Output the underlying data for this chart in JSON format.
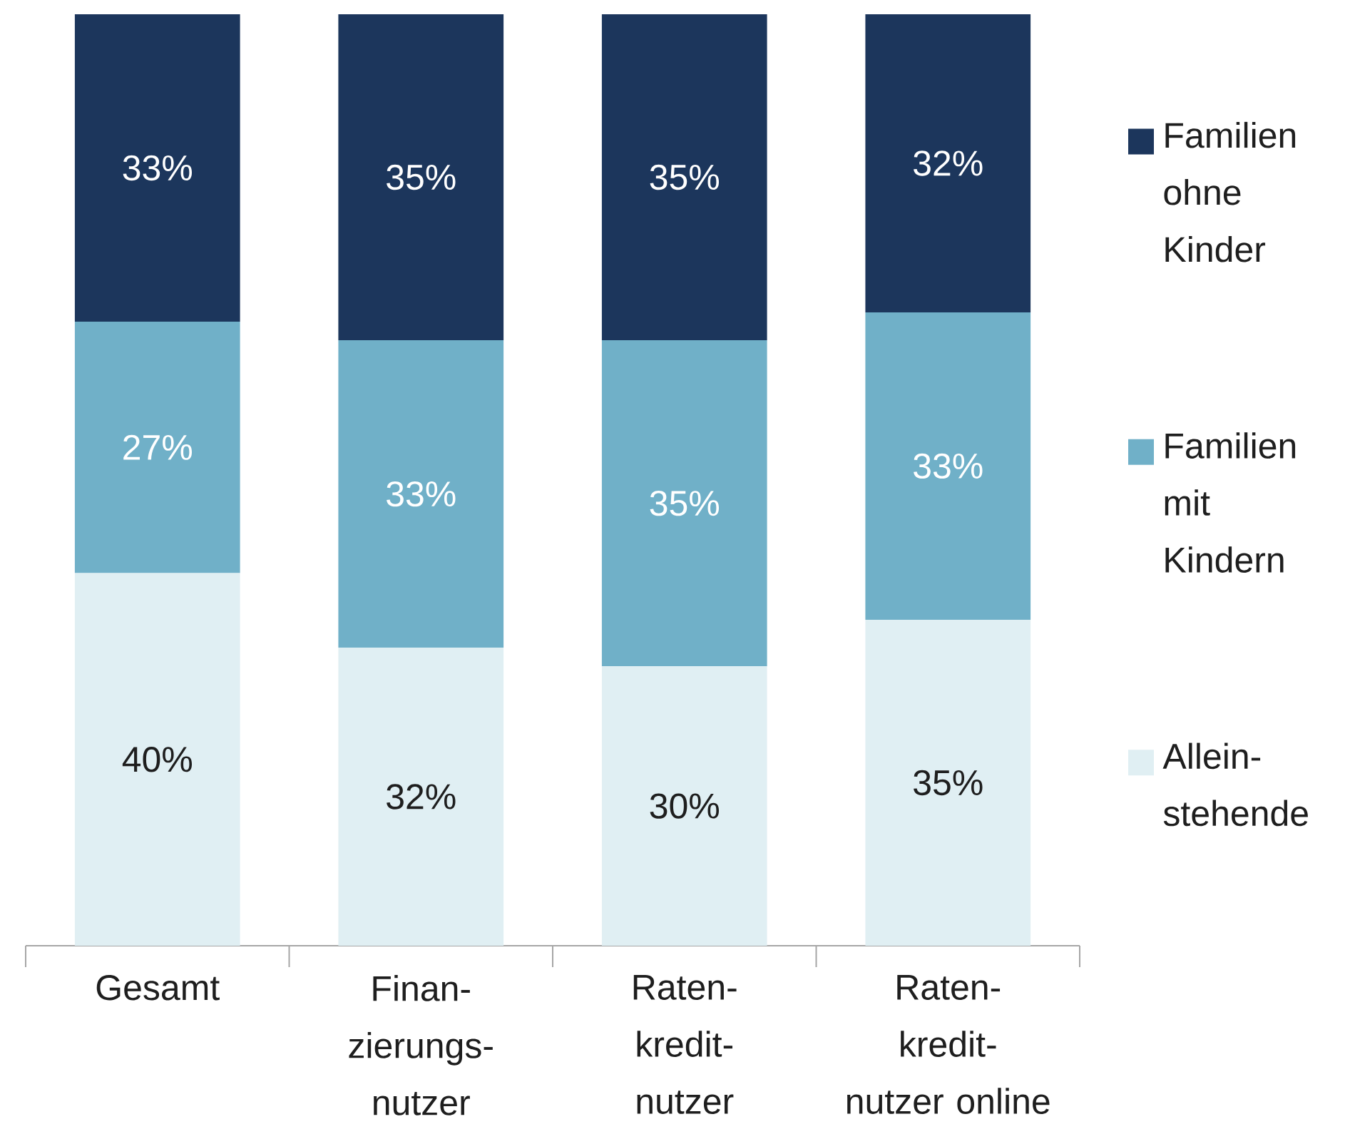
{
  "chart_data": {
    "type": "bar",
    "stacked": true,
    "legend": "right",
    "categories": [
      "Gesamt",
      "Finan-zierungs-nutzer",
      "Raten-kredit-nutzer",
      "Raten-kredit-nutzer online"
    ],
    "series": [
      {
        "name": "Allein-stehende",
        "color": "#e0eff3",
        "values": [
          40,
          32,
          30,
          35
        ],
        "value_labels": [
          "40%",
          "32%",
          "30%",
          "35%"
        ]
      },
      {
        "name": "Familien mit Kindern",
        "color": "#70b0c8",
        "values": [
          27,
          33,
          35,
          33
        ],
        "value_labels": [
          "27%",
          "33%",
          "35%",
          "33%"
        ]
      },
      {
        "name": "Familien ohne Kinder",
        "color": "#1c365c",
        "values": [
          33,
          35,
          35,
          32
        ],
        "value_labels": [
          "33%",
          "35%",
          "35%",
          "32%"
        ]
      }
    ]
  }
}
